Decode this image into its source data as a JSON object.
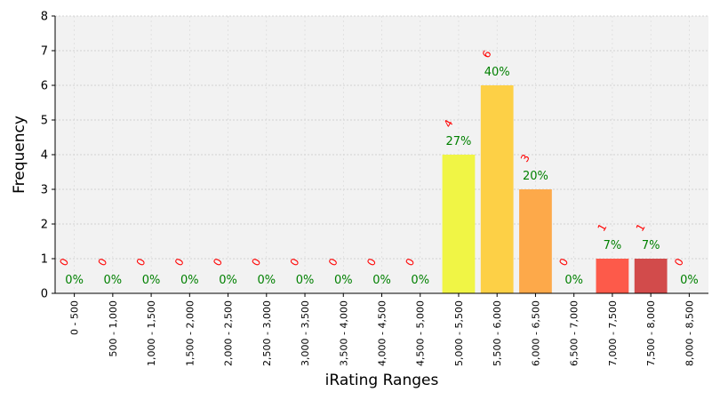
{
  "chart_data": {
    "type": "bar",
    "xlabel": "iRating Ranges",
    "ylabel": "Frequency",
    "ylim": [
      0,
      8
    ],
    "yticks": [
      "0",
      "1",
      "2",
      "3",
      "4",
      "5",
      "6",
      "7",
      "8"
    ],
    "grid": true,
    "categories": [
      "0 - 500",
      "500 - 1,000",
      "1,000 - 1,500",
      "1,500 - 2,000",
      "2,000 - 2,500",
      "2,500 - 3,000",
      "3,000 - 3,500",
      "3,500 - 4,000",
      "4,000 - 4,500",
      "4,500 - 5,000",
      "5,000 - 5,500",
      "5,500 - 6,000",
      "6,000 - 6,500",
      "6,500 - 7,000",
      "7,000 - 7,500",
      "7,500 - 8,000",
      "8,000 - 8,500"
    ],
    "values": [
      0,
      0,
      0,
      0,
      0,
      0,
      0,
      0,
      0,
      0,
      4,
      6,
      3,
      0,
      1,
      1,
      0
    ],
    "count_labels": [
      "0",
      "0",
      "0",
      "0",
      "0",
      "0",
      "0",
      "0",
      "0",
      "0",
      "4",
      "6",
      "3",
      "0",
      "1",
      "1",
      "0"
    ],
    "percent_labels": [
      "0%",
      "0%",
      "0%",
      "0%",
      "0%",
      "0%",
      "0%",
      "0%",
      "0%",
      "0%",
      "27%",
      "40%",
      "20%",
      "0%",
      "7%",
      "7%",
      "0%"
    ],
    "colors": [
      "#f3f3f3",
      "#f3f3f3",
      "#f3f3f3",
      "#f3f3f3",
      "#f3f3f3",
      "#f3f3f3",
      "#f3f3f3",
      "#f3f3f3",
      "#f3f3f3",
      "#f3f3f3",
      "#f0f545",
      "#fdd046",
      "#fda94a",
      "#fd8a49",
      "#fd5a4a",
      "#d24b4b",
      "#b84040"
    ],
    "plot_background": "#f2f2f2"
  }
}
